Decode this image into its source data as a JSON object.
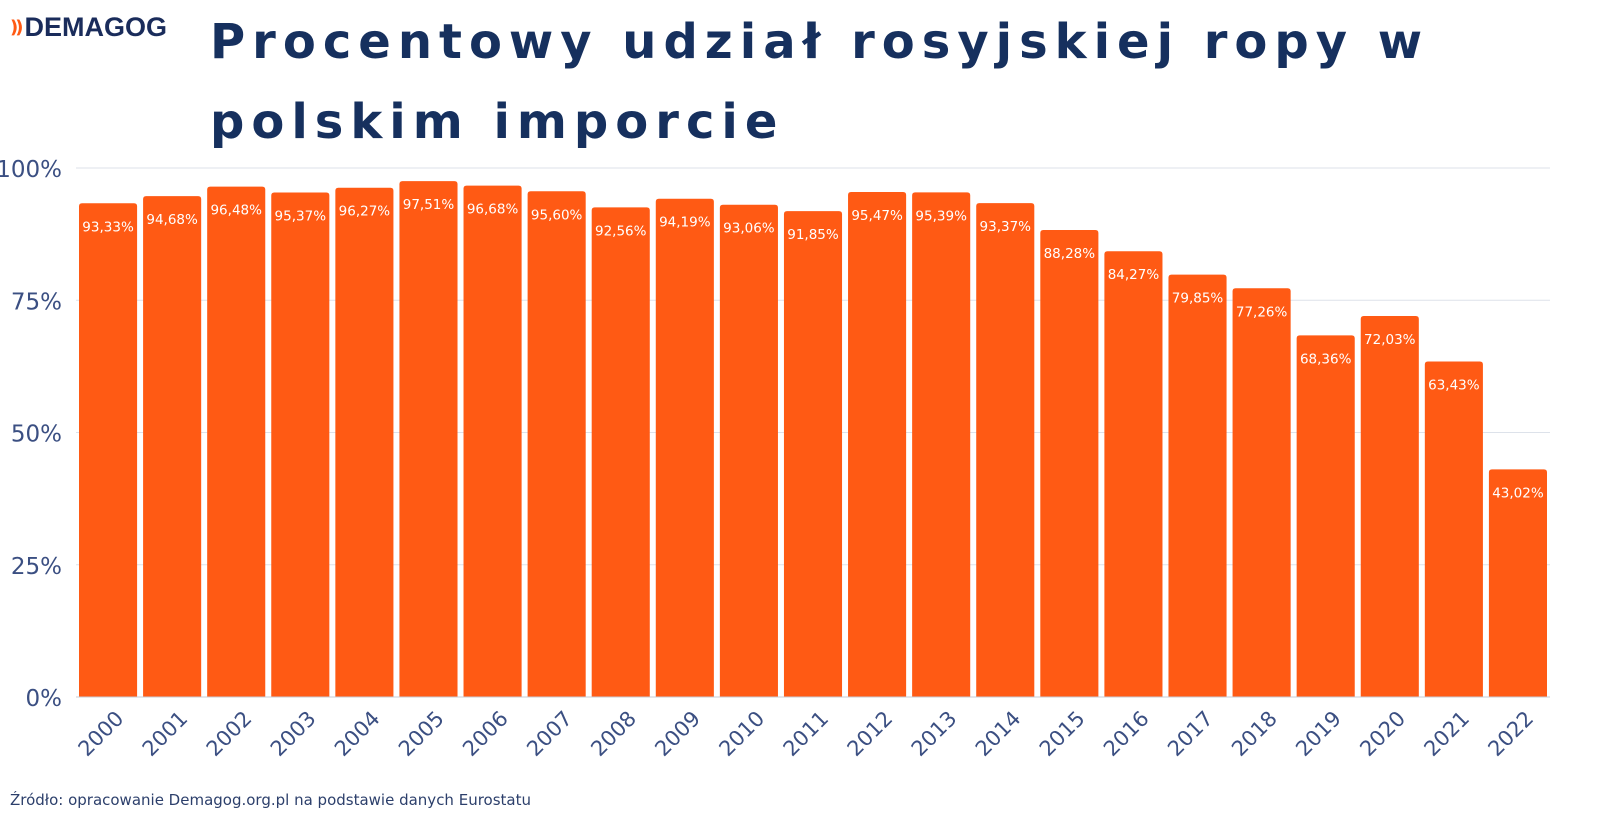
{
  "brand": {
    "logo_text": "DEMAGOG",
    "logo_mark": "))"
  },
  "title": "Procentowy udział rosyjskiej ropy w polskim imporcie",
  "source": "Źródło: opracowanie Demagog.org.pl na podstawie danych Eurostatu",
  "colors": {
    "bar": "#ff5a14",
    "title": "#16305e",
    "axis_text": "#3b4f82",
    "grid": "#dde2ea",
    "label_text": "#ffffff"
  },
  "chart_data": {
    "type": "bar",
    "title": "Procentowy udział rosyjskiej ropy w polskim imporcie",
    "xlabel": "",
    "ylabel": "",
    "ylim": [
      0,
      100
    ],
    "yticks": [
      0,
      25,
      50,
      75,
      100
    ],
    "ytick_labels": [
      "0%",
      "25%",
      "50%",
      "75%",
      "100%"
    ],
    "grid": true,
    "categories": [
      "2000",
      "2001",
      "2002",
      "2003",
      "2004",
      "2005",
      "2006",
      "2007",
      "2008",
      "2009",
      "2010",
      "2011",
      "2012",
      "2013",
      "2014",
      "2015",
      "2016",
      "2017",
      "2018",
      "2019",
      "2020",
      "2021",
      "2022"
    ],
    "values": [
      93.33,
      94.68,
      96.48,
      95.37,
      96.27,
      97.51,
      96.68,
      95.6,
      92.56,
      94.19,
      93.06,
      91.85,
      95.47,
      95.39,
      93.37,
      88.28,
      84.27,
      79.85,
      77.26,
      68.36,
      72.03,
      63.43,
      43.02
    ],
    "value_labels": [
      "93,33%",
      "94,68%",
      "96,48%",
      "95,37%",
      "96,27%",
      "97,51%",
      "96,68%",
      "95,60%",
      "92,56%",
      "94,19%",
      "93,06%",
      "91,85%",
      "95,47%",
      "95,39%",
      "93,37%",
      "88,28%",
      "84,27%",
      "79,85%",
      "77,26%",
      "68,36%",
      "72,03%",
      "63,43%",
      "43,02%"
    ]
  }
}
